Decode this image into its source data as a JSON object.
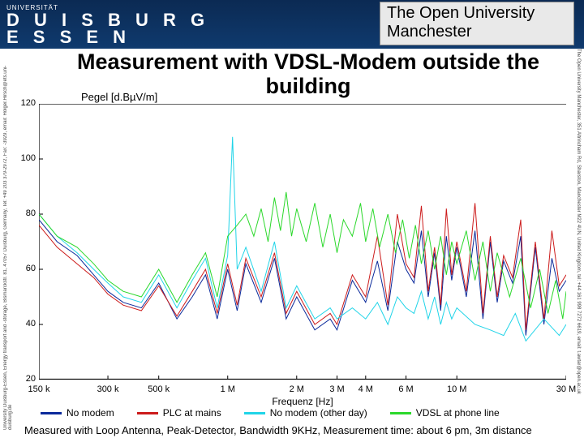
{
  "header": {
    "logo_top": "UNIVERSITÄT",
    "logo_block_l1": "D U I S B U R G",
    "logo_block_l2": "E S S E N",
    "ou_line1": "The Open University",
    "ou_line2": "Manchester"
  },
  "title": "Measurement with VDSL-Modem outside the building",
  "ylabel": "Pegel [d.BµV/m]",
  "xlabel": "Frequenz [Hz]",
  "left_side_text": "University Duisburg-Essen, Energy transport and -storage, Bismarckstr. 81, 47057 Duisburg, Germany, Tel: +49 203 379-2972, Fax: -3929, email: Holger.Hirsch@ets.uni-duisburg.de",
  "right_side_text": "The Open University Manchester, 351 Altrincham Rd, Sharston, Manchester M22 4UN, United Kingdom, tel: +44 161 998 7272 6619, email: t.awtar@open.ac.uk",
  "caption": "Measured with Loop Antenna, Peak-Detector, Bandwidth 9KHz, Measurement time: about 6 pm, 3m distance",
  "chart": {
    "type": "line-spectrum",
    "background_color": "#ffffff",
    "border_color": "#000000",
    "ylim": [
      20,
      120
    ],
    "ytick_step": 20,
    "yticks": [
      20,
      40,
      60,
      80,
      100,
      120
    ],
    "xscale": "log",
    "xlim_hz": [
      150000,
      30000000
    ],
    "xticks": [
      {
        "hz": 150000,
        "label": "150 k"
      },
      {
        "hz": 300000,
        "label": "300 k"
      },
      {
        "hz": 500000,
        "label": "500 k"
      },
      {
        "hz": 1000000,
        "label": "1 M"
      },
      {
        "hz": 2000000,
        "label": "2 M"
      },
      {
        "hz": 3000000,
        "label": "3 M"
      },
      {
        "hz": 4000000,
        "label": "4 M"
      },
      {
        "hz": 6000000,
        "label": "6 M"
      },
      {
        "hz": 10000000,
        "label": "10 M"
      },
      {
        "hz": 30000000,
        "label": "30 M"
      }
    ],
    "series": [
      {
        "label": "No modem",
        "color": "#0b2a9b",
        "line_width": 1,
        "points": [
          [
            150000,
            78
          ],
          [
            180000,
            70
          ],
          [
            220000,
            65
          ],
          [
            260000,
            58
          ],
          [
            300000,
            52
          ],
          [
            350000,
            48
          ],
          [
            420000,
            46
          ],
          [
            500000,
            55
          ],
          [
            600000,
            42
          ],
          [
            700000,
            50
          ],
          [
            800000,
            58
          ],
          [
            900000,
            42
          ],
          [
            1000000,
            60
          ],
          [
            1100000,
            45
          ],
          [
            1200000,
            62
          ],
          [
            1400000,
            48
          ],
          [
            1600000,
            64
          ],
          [
            1800000,
            42
          ],
          [
            2000000,
            50
          ],
          [
            2400000,
            38
          ],
          [
            2800000,
            42
          ],
          [
            3000000,
            38
          ],
          [
            3500000,
            56
          ],
          [
            4000000,
            48
          ],
          [
            4500000,
            63
          ],
          [
            5000000,
            45
          ],
          [
            5500000,
            70
          ],
          [
            6000000,
            60
          ],
          [
            6500000,
            55
          ],
          [
            7000000,
            74
          ],
          [
            7500000,
            50
          ],
          [
            8000000,
            66
          ],
          [
            8500000,
            45
          ],
          [
            9000000,
            72
          ],
          [
            9500000,
            56
          ],
          [
            10000000,
            68
          ],
          [
            11000000,
            50
          ],
          [
            12000000,
            74
          ],
          [
            13000000,
            42
          ],
          [
            14000000,
            70
          ],
          [
            15000000,
            48
          ],
          [
            16000000,
            63
          ],
          [
            17500000,
            55
          ],
          [
            19000000,
            72
          ],
          [
            20000000,
            36
          ],
          [
            22000000,
            68
          ],
          [
            24000000,
            40
          ],
          [
            26000000,
            64
          ],
          [
            28000000,
            52
          ],
          [
            30000000,
            56
          ]
        ]
      },
      {
        "label": "PLC at mains",
        "color": "#cc1b1b",
        "line_width": 1,
        "points": [
          [
            150000,
            76
          ],
          [
            180000,
            68
          ],
          [
            220000,
            62
          ],
          [
            260000,
            57
          ],
          [
            300000,
            51
          ],
          [
            350000,
            47
          ],
          [
            420000,
            45
          ],
          [
            500000,
            54
          ],
          [
            600000,
            43
          ],
          [
            700000,
            52
          ],
          [
            800000,
            60
          ],
          [
            900000,
            44
          ],
          [
            1000000,
            62
          ],
          [
            1100000,
            47
          ],
          [
            1200000,
            64
          ],
          [
            1400000,
            50
          ],
          [
            1600000,
            66
          ],
          [
            1800000,
            44
          ],
          [
            2000000,
            52
          ],
          [
            2400000,
            40
          ],
          [
            2800000,
            44
          ],
          [
            3000000,
            40
          ],
          [
            3500000,
            58
          ],
          [
            4000000,
            50
          ],
          [
            4500000,
            72
          ],
          [
            5000000,
            47
          ],
          [
            5500000,
            80
          ],
          [
            6000000,
            62
          ],
          [
            6500000,
            57
          ],
          [
            7000000,
            83
          ],
          [
            7500000,
            52
          ],
          [
            8000000,
            68
          ],
          [
            8500000,
            47
          ],
          [
            9000000,
            82
          ],
          [
            9500000,
            58
          ],
          [
            10000000,
            70
          ],
          [
            11000000,
            52
          ],
          [
            12000000,
            84
          ],
          [
            13000000,
            44
          ],
          [
            14000000,
            72
          ],
          [
            15000000,
            50
          ],
          [
            16000000,
            65
          ],
          [
            17500000,
            57
          ],
          [
            19000000,
            78
          ],
          [
            20000000,
            38
          ],
          [
            22000000,
            70
          ],
          [
            24000000,
            42
          ],
          [
            26000000,
            74
          ],
          [
            28000000,
            54
          ],
          [
            30000000,
            58
          ]
        ]
      },
      {
        "label": "No modem (other day)",
        "color": "#20d4e8",
        "line_width": 1,
        "points": [
          [
            150000,
            80
          ],
          [
            180000,
            72
          ],
          [
            220000,
            66
          ],
          [
            260000,
            60
          ],
          [
            300000,
            55
          ],
          [
            350000,
            50
          ],
          [
            420000,
            48
          ],
          [
            500000,
            58
          ],
          [
            600000,
            46
          ],
          [
            700000,
            56
          ],
          [
            800000,
            64
          ],
          [
            900000,
            46
          ],
          [
            1000000,
            65
          ],
          [
            1050000,
            108
          ],
          [
            1100000,
            60
          ],
          [
            1200000,
            68
          ],
          [
            1400000,
            52
          ],
          [
            1600000,
            70
          ],
          [
            1800000,
            46
          ],
          [
            2000000,
            54
          ],
          [
            2400000,
            42
          ],
          [
            2800000,
            46
          ],
          [
            3000000,
            42
          ],
          [
            3500000,
            46
          ],
          [
            4000000,
            42
          ],
          [
            4500000,
            48
          ],
          [
            5000000,
            40
          ],
          [
            5500000,
            50
          ],
          [
            6000000,
            46
          ],
          [
            6500000,
            44
          ],
          [
            7000000,
            52
          ],
          [
            7500000,
            42
          ],
          [
            8000000,
            50
          ],
          [
            8500000,
            40
          ],
          [
            9000000,
            48
          ],
          [
            9500000,
            42
          ],
          [
            10000000,
            46
          ],
          [
            12000000,
            40
          ],
          [
            14000000,
            38
          ],
          [
            16000000,
            36
          ],
          [
            18000000,
            44
          ],
          [
            20000000,
            34
          ],
          [
            24000000,
            42
          ],
          [
            28000000,
            36
          ],
          [
            30000000,
            40
          ]
        ]
      },
      {
        "label": "VDSL at phone line",
        "color": "#2bd82b",
        "line_width": 1,
        "points": [
          [
            150000,
            80
          ],
          [
            180000,
            72
          ],
          [
            220000,
            68
          ],
          [
            260000,
            62
          ],
          [
            300000,
            56
          ],
          [
            350000,
            52
          ],
          [
            420000,
            50
          ],
          [
            500000,
            60
          ],
          [
            600000,
            48
          ],
          [
            700000,
            58
          ],
          [
            800000,
            66
          ],
          [
            900000,
            50
          ],
          [
            1000000,
            72
          ],
          [
            1100000,
            76
          ],
          [
            1200000,
            80
          ],
          [
            1300000,
            72
          ],
          [
            1400000,
            82
          ],
          [
            1500000,
            70
          ],
          [
            1600000,
            86
          ],
          [
            1700000,
            74
          ],
          [
            1800000,
            88
          ],
          [
            1900000,
            72
          ],
          [
            2000000,
            82
          ],
          [
            2200000,
            70
          ],
          [
            2400000,
            84
          ],
          [
            2600000,
            68
          ],
          [
            2800000,
            80
          ],
          [
            3000000,
            66
          ],
          [
            3200000,
            78
          ],
          [
            3500000,
            72
          ],
          [
            3800000,
            84
          ],
          [
            4000000,
            70
          ],
          [
            4300000,
            82
          ],
          [
            4600000,
            68
          ],
          [
            5000000,
            80
          ],
          [
            5400000,
            66
          ],
          [
            5800000,
            78
          ],
          [
            6200000,
            64
          ],
          [
            6600000,
            76
          ],
          [
            7000000,
            62
          ],
          [
            7500000,
            74
          ],
          [
            8000000,
            60
          ],
          [
            8500000,
            72
          ],
          [
            9000000,
            58
          ],
          [
            9500000,
            70
          ],
          [
            10000000,
            62
          ],
          [
            11000000,
            74
          ],
          [
            12000000,
            56
          ],
          [
            13000000,
            70
          ],
          [
            14000000,
            52
          ],
          [
            15000000,
            66
          ],
          [
            17000000,
            50
          ],
          [
            19000000,
            64
          ],
          [
            21000000,
            46
          ],
          [
            23000000,
            60
          ],
          [
            25000000,
            44
          ],
          [
            27000000,
            56
          ],
          [
            29000000,
            42
          ],
          [
            30000000,
            52
          ]
        ]
      }
    ]
  },
  "colors": {
    "header_bg": "#0f3a6e",
    "no_modem": "#0b2a9b",
    "plc": "#cc1b1b",
    "no_modem_other": "#20d4e8",
    "vdsl": "#2bd82b"
  },
  "font": {
    "title_size_pt": 20,
    "axis_label_size_pt": 9,
    "tick_size_pt": 8,
    "legend_size_pt": 9
  }
}
